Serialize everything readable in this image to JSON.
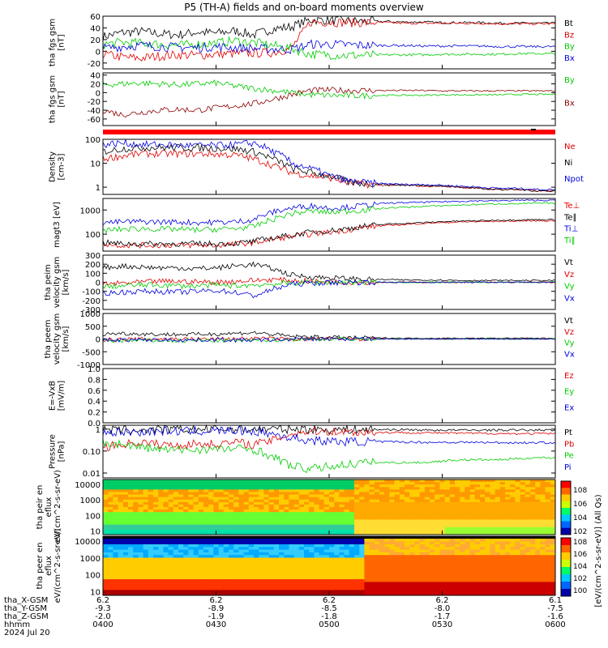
{
  "title": "P5 (TH-A) fields and on-board moments overview",
  "time_axis": {
    "labels": [
      {
        "rows": [
          "6.2",
          "-9.3",
          "-2.0",
          "0400"
        ]
      },
      {
        "rows": [
          "6.2",
          "-8.9",
          "-1.9",
          "0430"
        ]
      },
      {
        "rows": [
          "6.2",
          "-8.5",
          "-1.8",
          "0500"
        ]
      },
      {
        "rows": [
          "6.2",
          "-8.0",
          "-1.7",
          "0530"
        ]
      },
      {
        "rows": [
          "6.1",
          "-7.5",
          "-1.6",
          "0600"
        ]
      }
    ],
    "row_titles": [
      "tha_X-GSM",
      "tha_Y-GSM",
      "tha_Z-GSM",
      "hhmm"
    ],
    "date": "2024 Jul 20"
  },
  "colorbar": {
    "label": "[eV/(cm^2-s-sr-eV)] (All Qs)",
    "upper_ticks": [
      "10^8",
      "10^6",
      "10^4",
      "10^2"
    ],
    "lower_ticks": [
      "10^8",
      "10^6",
      "10^4",
      "10^2",
      "10^0"
    ]
  },
  "chart_data": [
    {
      "type": "line",
      "ylabel": "tha fgs gsm [nT]",
      "ytick_labels": [
        "60",
        "40",
        "20",
        "0",
        "-20"
      ],
      "ylim": [
        -30,
        60
      ],
      "series": [
        {
          "name": "Bt",
          "color": "#000000",
          "values": [
            25,
            32,
            34,
            30,
            28,
            33,
            31,
            35,
            28,
            38,
            42,
            54,
            53,
            52,
            51,
            51,
            50,
            50,
            49,
            49,
            49,
            48,
            48,
            48,
            48
          ]
        },
        {
          "name": "Bz",
          "color": "#e00000",
          "values": [
            -5,
            -10,
            -12,
            -8,
            -6,
            -7,
            -5,
            -4,
            -3,
            -2,
            5,
            50,
            50,
            49,
            49,
            49,
            48,
            48,
            48,
            48,
            48,
            47,
            47,
            47,
            47
          ]
        },
        {
          "name": "By",
          "color": "#00cc00",
          "values": [
            12,
            15,
            14,
            12,
            10,
            12,
            14,
            18,
            15,
            10,
            5,
            -5,
            -6,
            -7,
            -7,
            -6,
            -6,
            -6,
            -5,
            -5,
            -5,
            -5,
            -4,
            -4,
            -4
          ]
        },
        {
          "name": "Bx",
          "color": "#0000e0",
          "values": [
            5,
            8,
            10,
            8,
            7,
            6,
            8,
            6,
            5,
            4,
            3,
            12,
            12,
            11,
            10,
            10,
            10,
            9,
            9,
            9,
            9,
            8,
            8,
            8,
            8
          ]
        }
      ]
    },
    {
      "type": "line",
      "ylabel": "tha fgs gsm [nT]",
      "ytick_labels": [
        "40",
        "20",
        "0",
        "-20",
        "-40",
        "-60"
      ],
      "ylim": [
        -75,
        45
      ],
      "series": [
        {
          "name": "By",
          "color": "#00cc00",
          "values": [
            18,
            20,
            22,
            20,
            18,
            20,
            22,
            15,
            10,
            5,
            0,
            -5,
            -6,
            -7,
            -7,
            -6,
            -6,
            -6,
            -5,
            -5,
            -5,
            -5,
            -4,
            -4,
            -4
          ]
        },
        {
          "name": "Bx",
          "color": "#8b0000",
          "values": [
            -40,
            -50,
            -45,
            -40,
            -38,
            -40,
            -35,
            -30,
            -25,
            -15,
            -5,
            5,
            6,
            5,
            5,
            5,
            5,
            5,
            4,
            4,
            4,
            4,
            4,
            4,
            4
          ]
        }
      ]
    },
    {
      "type": "line",
      "ylabel": "Density [cm-3]",
      "yscale": "log",
      "ytick_labels": [
        "100",
        "10",
        "1"
      ],
      "ylim": [
        0.5,
        100
      ],
      "series": [
        {
          "name": "Ne",
          "color": "#e00000",
          "values": [
            15,
            20,
            25,
            25,
            25,
            25,
            24,
            22,
            15,
            8,
            4,
            3,
            2.5,
            1.5,
            1.3,
            1.2,
            1.2,
            1.1,
            1.1,
            1.0,
            0.9,
            0.8,
            0.8,
            0.7,
            0.7
          ]
        },
        {
          "name": "Ni",
          "color": "#000000",
          "values": [
            30,
            40,
            45,
            45,
            45,
            44,
            42,
            40,
            30,
            15,
            6,
            4,
            3,
            1.6,
            1.4,
            1.3,
            1.2,
            1.2,
            1.1,
            1.0,
            0.9,
            0.8,
            0.8,
            0.7,
            0.7
          ]
        },
        {
          "name": "Npot",
          "color": "#0000e0",
          "values": [
            60,
            70,
            60,
            60,
            55,
            55,
            55,
            60,
            70,
            30,
            10,
            6,
            3,
            1.8,
            1.5,
            1.4,
            1.3,
            1.3,
            1.2,
            1.1,
            1.0,
            0.9,
            0.9,
            0.8,
            0.8
          ]
        }
      ]
    },
    {
      "type": "line",
      "ylabel": "magt3 [eV]",
      "yscale": "log",
      "ytick_labels": [
        "1000",
        "100"
      ],
      "ylim": [
        20,
        3000
      ],
      "series": [
        {
          "name": "Te⊥",
          "color": "#e00000",
          "values": [
            40,
            35,
            35,
            35,
            35,
            35,
            35,
            38,
            45,
            60,
            80,
            100,
            120,
            150,
            200,
            230,
            250,
            280,
            300,
            320,
            330,
            340,
            350,
            360,
            360
          ]
        },
        {
          "name": "Te∥",
          "color": "#000000",
          "values": [
            45,
            40,
            40,
            40,
            40,
            40,
            40,
            42,
            50,
            70,
            90,
            120,
            140,
            170,
            220,
            260,
            280,
            300,
            330,
            350,
            360,
            380,
            390,
            400,
            400
          ]
        },
        {
          "name": "Ti⊥",
          "color": "#0000e0",
          "values": [
            300,
            320,
            330,
            320,
            320,
            300,
            310,
            320,
            400,
            800,
            1200,
            1500,
            1200,
            1300,
            1600,
            1900,
            2000,
            2100,
            2200,
            2300,
            2400,
            2400,
            2500,
            2500,
            2500
          ]
        },
        {
          "name": "Ti∥",
          "color": "#00cc00",
          "values": [
            140,
            160,
            170,
            160,
            160,
            150,
            160,
            170,
            200,
            400,
            700,
            900,
            800,
            900,
            1000,
            1200,
            1300,
            1400,
            1500,
            1600,
            1700,
            1800,
            1800,
            1900,
            1900
          ]
        }
      ]
    },
    {
      "type": "line",
      "ylabel": "tha peim velocity gsm [km/s]",
      "ytick_labels": [
        "300",
        "200",
        "100",
        "0",
        "-100",
        "-200",
        "-300"
      ],
      "ylim": [
        -300,
        300
      ],
      "series": [
        {
          "name": "Vt",
          "color": "#000000",
          "values": [
            160,
            180,
            170,
            160,
            160,
            150,
            160,
            180,
            200,
            150,
            80,
            60,
            50,
            40,
            30,
            30,
            25,
            25,
            25,
            20,
            20,
            20,
            20,
            20,
            20
          ]
        },
        {
          "name": "Vz",
          "color": "#e00000",
          "values": [
            -20,
            -10,
            0,
            10,
            10,
            5,
            0,
            10,
            20,
            30,
            20,
            10,
            5,
            0,
            0,
            0,
            0,
            0,
            0,
            0,
            0,
            0,
            0,
            0,
            0
          ]
        },
        {
          "name": "Vy",
          "color": "#00cc00",
          "values": [
            -50,
            -40,
            -30,
            -30,
            -40,
            -40,
            -30,
            -40,
            -30,
            -20,
            -10,
            0,
            0,
            0,
            0,
            0,
            0,
            0,
            0,
            0,
            0,
            0,
            0,
            0,
            0
          ]
        },
        {
          "name": "Vx",
          "color": "#0000e0",
          "values": [
            -120,
            -110,
            -100,
            -100,
            -110,
            -100,
            -90,
            -110,
            -150,
            -80,
            -20,
            -10,
            -5,
            0,
            0,
            0,
            0,
            0,
            0,
            0,
            0,
            0,
            0,
            0,
            0
          ]
        }
      ]
    },
    {
      "type": "line",
      "ylabel": "tha peem velocity gsm [km/s]",
      "ytick_labels": [
        "1000",
        "500",
        "0",
        "-500",
        "-1000"
      ],
      "ylim": [
        -1000,
        1000
      ],
      "series": [
        {
          "name": "Vt",
          "color": "#000000",
          "values": [
            200,
            220,
            200,
            180,
            180,
            180,
            200,
            220,
            250,
            180,
            100,
            80,
            60,
            50,
            40,
            40,
            30,
            30,
            30,
            30,
            30,
            30,
            30,
            30,
            30
          ]
        },
        {
          "name": "Vz",
          "color": "#e00000",
          "values": [
            -30,
            -20,
            -10,
            0,
            0,
            0,
            0,
            10,
            20,
            10,
            0,
            0,
            0,
            0,
            0,
            0,
            0,
            0,
            0,
            0,
            0,
            0,
            0,
            0,
            0
          ]
        },
        {
          "name": "Vy",
          "color": "#00cc00",
          "values": [
            -80,
            -70,
            -60,
            -60,
            -70,
            -60,
            -60,
            -70,
            -60,
            -40,
            -20,
            -10,
            0,
            0,
            0,
            0,
            0,
            0,
            0,
            0,
            0,
            0,
            0,
            0,
            0
          ]
        },
        {
          "name": "Vx",
          "color": "#0000e0",
          "values": [
            -50,
            -40,
            -40,
            -30,
            -40,
            -40,
            -30,
            -40,
            -50,
            -30,
            -10,
            0,
            0,
            0,
            0,
            0,
            0,
            0,
            0,
            0,
            0,
            0,
            0,
            0,
            0
          ]
        }
      ]
    },
    {
      "type": "line",
      "ylabel": "E=-VxB [mV/m]",
      "ytick_labels": [
        "1.0",
        "0.8",
        "0.6",
        "0.4",
        "0.2",
        "0.0"
      ],
      "ylim": [
        0,
        1
      ],
      "series": [
        {
          "name": "Ez",
          "color": "#e00000",
          "values": []
        },
        {
          "name": "Ey",
          "color": "#00cc00",
          "values": []
        },
        {
          "name": "Ex",
          "color": "#0000e0",
          "values": []
        }
      ]
    },
    {
      "type": "line",
      "ylabel": "Pressure [nPa]",
      "yscale": "log",
      "ytick_labels": [
        "1",
        "0.10",
        "0.01"
      ],
      "ylim": [
        0.006,
        1.5
      ],
      "series": [
        {
          "name": "Pt",
          "color": "#000000",
          "values": [
            0.9,
            0.9,
            0.9,
            0.95,
            0.95,
            0.95,
            1.0,
            1.0,
            1.0,
            1.0,
            1.0,
            1.0,
            0.95,
            0.95,
            0.95,
            0.95,
            0.95,
            0.9,
            0.9,
            0.9,
            0.9,
            0.9,
            0.9,
            0.9,
            0.9
          ]
        },
        {
          "name": "Pb",
          "color": "#e00000",
          "values": [
            0.15,
            0.2,
            0.25,
            0.2,
            0.18,
            0.22,
            0.2,
            0.25,
            0.2,
            0.3,
            0.6,
            0.8,
            0.8,
            0.75,
            0.72,
            0.7,
            0.7,
            0.68,
            0.67,
            0.65,
            0.64,
            0.63,
            0.62,
            0.62,
            0.62
          ]
        },
        {
          "name": "Pe",
          "color": "#00cc00",
          "values": [
            0.25,
            0.2,
            0.15,
            0.12,
            0.11,
            0.12,
            0.12,
            0.13,
            0.12,
            0.05,
            0.02,
            0.015,
            0.02,
            0.025,
            0.03,
            0.03,
            0.03,
            0.03,
            0.035,
            0.04,
            0.04,
            0.04,
            0.045,
            0.05,
            0.05
          ]
        },
        {
          "name": "Pi",
          "color": "#0000e0",
          "values": [
            0.7,
            0.75,
            0.75,
            0.8,
            0.8,
            0.8,
            0.85,
            0.85,
            0.8,
            0.6,
            0.4,
            0.3,
            0.28,
            0.27,
            0.27,
            0.26,
            0.26,
            0.25,
            0.25,
            0.25,
            0.25,
            0.24,
            0.24,
            0.24,
            0.24
          ]
        }
      ]
    },
    {
      "type": "heatmap",
      "ylabel": "tha peir en eflux eV/(cm^2-s-sr-eV)",
      "yscale": "log",
      "ytick_labels": [
        "10000",
        "1000",
        "100",
        "10"
      ],
      "ylim": [
        6,
        20000
      ],
      "description_of_regimes": [
        "green-yellow ion spectrum 0400-0500",
        "orange-yellow after 0500"
      ]
    },
    {
      "type": "heatmap",
      "ylabel": "tha peer en eflux eV/(cm^2-s-sr-eV)",
      "yscale": "log",
      "ytick_labels": [
        "10000",
        "1000",
        "100",
        "10"
      ],
      "ylim": [
        6,
        20000
      ]
    }
  ]
}
